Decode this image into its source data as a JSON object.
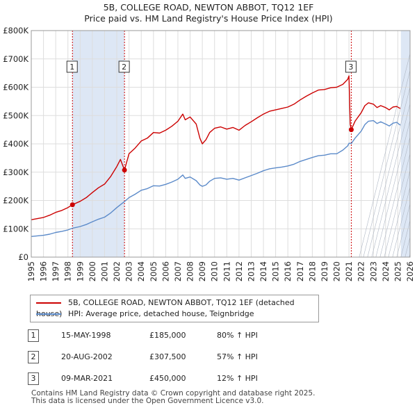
{
  "title_line1": "5B, COLLEGE ROAD, NEWTON ABBOT, TQ12 1EF",
  "title_line2": "Price paid vs. HM Land Registry's House Price Index (HPI)",
  "chart_data": {
    "type": "line",
    "xlim": [
      1995,
      2026
    ],
    "ylim": [
      0,
      800000
    ],
    "x_ticks": [
      "1995",
      "1996",
      "1997",
      "1998",
      "1999",
      "2000",
      "2001",
      "2002",
      "2003",
      "2004",
      "2005",
      "2006",
      "2007",
      "2008",
      "2009",
      "2010",
      "2011",
      "2012",
      "2013",
      "2014",
      "2015",
      "2016",
      "2017",
      "2018",
      "2019",
      "2020",
      "2021",
      "2022",
      "2023",
      "2024",
      "2025",
      "2026"
    ],
    "y_ticks": [
      {
        "value": 0,
        "label": "£0"
      },
      {
        "value": 100000,
        "label": "£100K"
      },
      {
        "value": 200000,
        "label": "£200K"
      },
      {
        "value": 300000,
        "label": "£300K"
      },
      {
        "value": 400000,
        "label": "£400K"
      },
      {
        "value": 500000,
        "label": "£500K"
      },
      {
        "value": 600000,
        "label": "£600K"
      },
      {
        "value": 700000,
        "label": "£700K"
      },
      {
        "value": 800000,
        "label": "£800K"
      }
    ],
    "colors": {
      "property": "#cc0000",
      "hpi": "#5b8ac9",
      "shade": "#dde7f5",
      "grid": "#dddddd",
      "sale_line": "#cc0000"
    },
    "shaded_ranges": [
      [
        1998.37,
        2002.63
      ],
      [
        2025.25,
        2026
      ]
    ],
    "series": [
      {
        "name": "5B, COLLEGE ROAD, NEWTON ABBOT, TQ12 1EF (detached house)",
        "key": "property",
        "x": [
          1995.0,
          1995.5,
          1996.0,
          1996.5,
          1997.0,
          1997.5,
          1998.0,
          1998.37,
          1999.0,
          1999.5,
          2000.0,
          2000.5,
          2001.0,
          2001.5,
          2002.0,
          2002.3,
          2002.63,
          2003.0,
          2003.5,
          2004.0,
          2004.5,
          2005.0,
          2005.5,
          2006.0,
          2006.5,
          2007.0,
          2007.4,
          2007.6,
          2008.0,
          2008.5,
          2008.8,
          2009.0,
          2009.3,
          2009.6,
          2010.0,
          2010.5,
          2011.0,
          2011.5,
          2012.0,
          2012.5,
          2013.0,
          2013.5,
          2014.0,
          2014.5,
          2015.0,
          2015.5,
          2016.0,
          2016.5,
          2017.0,
          2017.5,
          2018.0,
          2018.5,
          2019.0,
          2019.5,
          2020.0,
          2020.5,
          2020.9,
          2021.0,
          2021.1,
          2021.19,
          2021.5,
          2022.0,
          2022.3,
          2022.6,
          2023.0,
          2023.3,
          2023.6,
          2024.0,
          2024.3,
          2024.6,
          2024.9,
          2025.2
        ],
        "values": [
          132000,
          136000,
          140000,
          148000,
          158000,
          165000,
          175000,
          185000,
          197000,
          210000,
          228000,
          245000,
          258000,
          285000,
          320000,
          345000,
          307500,
          365000,
          385000,
          410000,
          420000,
          440000,
          438000,
          448000,
          462000,
          480000,
          505000,
          485000,
          495000,
          470000,
          420000,
          400000,
          415000,
          440000,
          455000,
          460000,
          452000,
          458000,
          448000,
          465000,
          478000,
          492000,
          505000,
          515000,
          520000,
          525000,
          530000,
          540000,
          555000,
          568000,
          580000,
          590000,
          592000,
          598000,
          600000,
          610000,
          628000,
          640000,
          470000,
          450000,
          480000,
          510000,
          535000,
          545000,
          540000,
          528000,
          535000,
          528000,
          520000,
          530000,
          532000,
          525000
        ]
      },
      {
        "name": "HPI: Average price, detached house, Teignbridge",
        "key": "hpi",
        "x": [
          1995.0,
          1995.5,
          1996.0,
          1996.5,
          1997.0,
          1997.5,
          1998.0,
          1998.37,
          1999.0,
          1999.5,
          2000.0,
          2000.5,
          2001.0,
          2001.5,
          2002.0,
          2002.3,
          2002.63,
          2003.0,
          2003.5,
          2004.0,
          2004.5,
          2005.0,
          2005.5,
          2006.0,
          2006.5,
          2007.0,
          2007.4,
          2007.6,
          2008.0,
          2008.5,
          2008.8,
          2009.0,
          2009.3,
          2009.6,
          2010.0,
          2010.5,
          2011.0,
          2011.5,
          2012.0,
          2012.5,
          2013.0,
          2013.5,
          2014.0,
          2014.5,
          2015.0,
          2015.5,
          2016.0,
          2016.5,
          2017.0,
          2017.5,
          2018.0,
          2018.5,
          2019.0,
          2019.5,
          2020.0,
          2020.5,
          2020.9,
          2021.0,
          2021.1,
          2021.19,
          2021.5,
          2022.0,
          2022.3,
          2022.6,
          2023.0,
          2023.3,
          2023.6,
          2024.0,
          2024.3,
          2024.6,
          2024.9,
          2025.2
        ],
        "values": [
          73000,
          75000,
          77000,
          81000,
          87000,
          91000,
          96000,
          102000,
          108000,
          115000,
          125000,
          134000,
          141000,
          156000,
          175000,
          185000,
          196000,
          210000,
          222000,
          236000,
          242000,
          252000,
          251000,
          257000,
          265000,
          275000,
          290000,
          278000,
          283000,
          270000,
          255000,
          250000,
          255000,
          268000,
          278000,
          280000,
          275000,
          278000,
          272000,
          280000,
          288000,
          296000,
          305000,
          312000,
          315000,
          318000,
          322000,
          328000,
          338000,
          345000,
          352000,
          358000,
          360000,
          365000,
          365000,
          378000,
          393000,
          402000,
          402000,
          401000,
          420000,
          445000,
          468000,
          480000,
          482000,
          472000,
          478000,
          470000,
          463000,
          473000,
          476000,
          466000
        ]
      }
    ],
    "sales": [
      {
        "label": "1",
        "x": 1998.37,
        "value": 185000
      },
      {
        "label": "2",
        "x": 2002.63,
        "value": 307500
      },
      {
        "label": "3",
        "x": 2021.19,
        "value": 450000
      }
    ]
  },
  "legend": {
    "property_label": "5B, COLLEGE ROAD, NEWTON ABBOT, TQ12 1EF (detached house)",
    "hpi_label": "HPI: Average price, detached house, Teignbridge"
  },
  "sales_table": [
    {
      "num": "1",
      "date": "15-MAY-1998",
      "price": "£185,000",
      "hpi": "80% ↑ HPI"
    },
    {
      "num": "2",
      "date": "20-AUG-2002",
      "price": "£307,500",
      "hpi": "57% ↑ HPI"
    },
    {
      "num": "3",
      "date": "09-MAR-2021",
      "price": "£450,000",
      "hpi": "12% ↑ HPI"
    }
  ],
  "footer": {
    "line1": "Contains HM Land Registry data © Crown copyright and database right 2025.",
    "line2": "This data is licensed under the Open Government Licence v3.0."
  }
}
